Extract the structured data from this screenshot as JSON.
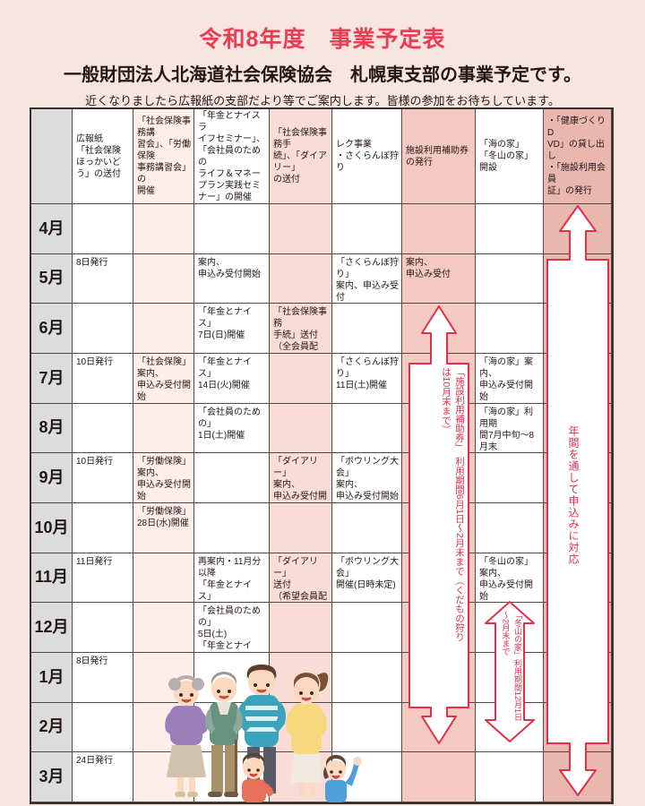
{
  "page": {
    "title": "令和8年度　事業予定表",
    "subtitle": "一般財団法人北海道社会保険協会　札幌東支部の事業予定です。",
    "note": "近くなりましたら広報紙の支部だより等でご案内します。皆様の参加をお待ちしています。"
  },
  "colors": {
    "page_bg": "#f8e5e1",
    "title_red": "#e73e53",
    "text_dark": "#231815",
    "month_gray": "#dcdcdc",
    "column_pink_light": "#fdeee9",
    "column_pink": "#f9dcd5",
    "column_pink_mid": "#f3c9c1",
    "column_pink_dark": "#eab7af",
    "grid_line": "#4c4948",
    "arrow_red": "#e0304a"
  },
  "table": {
    "column_headers": [
      "",
      "広報紙\n「社会保険\nほっかいど\nう」の送付",
      "「社会保険事務講\n習会」、「労働保険\n事務講習会」の\n開催",
      "「年金とナイスラ\nイフセミナー」、\n「会社員のための\nライフ＆マネー\nプラン実践セミ\nナー」の開催",
      "「社会保険事務手\n続」、「ダイアリー」\nの送付",
      "レク事業\n・さくらんぼ狩り",
      "施設利用補助券\nの発行",
      "「海の家」\n「冬山の家」開設",
      "・「健康づくりD\nVD」の貸し出し\n・「施設利用会員\n証」の発行"
    ],
    "rows": [
      {
        "month": "4月",
        "cells": [
          "",
          "",
          "",
          "",
          "",
          "",
          "",
          ""
        ]
      },
      {
        "month": "5月",
        "cells": [
          "8日発行",
          "",
          "案内、\n申込み受付開始",
          "",
          "「さくらんぼ狩り」\n案内、申込み受付",
          "案内、\n申込み受付",
          "",
          ""
        ]
      },
      {
        "month": "6月",
        "cells": [
          "",
          "",
          "「年金とナイス」\n7日(日)開催",
          "「社会保険事務\n手続」送付\n（全会員配付）",
          "",
          "",
          "",
          ""
        ]
      },
      {
        "month": "7月",
        "cells": [
          "10日発行",
          "「社会保険」案内、\n申込み受付開始",
          "「年金とナイス」\n14日(火)開催",
          "",
          "「さくらんぼ狩り」\n11日(土)開催",
          "",
          "「海の家」案内、\n申込み受付開始",
          ""
        ]
      },
      {
        "month": "8月",
        "cells": [
          "",
          "",
          "「会社員のための」\n1日(土)開催",
          "",
          "",
          "",
          "「海の家」利用期\n間7月中旬～8\n月末",
          ""
        ]
      },
      {
        "month": "9月",
        "cells": [
          "10日発行",
          "「労働保険」案内、\n申込み受付開始\n「社会保険」15日\n(火)開催",
          "",
          "「ダイアリー」\n案内、\n申込み受付開始",
          "「ボウリング大会」\n案内、\n申込み受付開始",
          "",
          "",
          ""
        ]
      },
      {
        "month": "10月",
        "cells": [
          "",
          "「労働保険」\n28日(水)開催",
          "",
          "",
          "",
          "",
          "",
          ""
        ]
      },
      {
        "month": "11月",
        "cells": [
          "11日発行",
          "",
          "再案内・11月分\n以降\n「年金とナイス」\n1日(日)開催",
          "「ダイアリー」\n送付\n（希望会員配付）",
          "「ボウリング大会」\n開催(日時未定)",
          "",
          "「冬山の家」案内、\n申込み受付開始",
          ""
        ]
      },
      {
        "month": "12月",
        "cells": [
          "",
          "",
          "「会社員のための」\n5日(土)\n「年金とナイス」\n12日(土)開催",
          "",
          "",
          "",
          "",
          ""
        ]
      },
      {
        "month": "1月",
        "cells": [
          "8日発行",
          "",
          "",
          "",
          "",
          "",
          "",
          ""
        ]
      },
      {
        "month": "2月",
        "cells": [
          "",
          "",
          "",
          "",
          "",
          "",
          "",
          ""
        ]
      },
      {
        "month": "3月",
        "cells": [
          "24日発行",
          "",
          "",
          "",
          "",
          "",
          "",
          ""
        ]
      }
    ]
  },
  "arrows": [
    {
      "name": "subsidy-period",
      "text_col1": "「施設利用補助券」　利用期間6月1日～2月末まで（くだもの狩り",
      "text_col2": "は10月末まで）"
    },
    {
      "name": "winter-house-period",
      "text_col1": "「冬山の家」利用期間12月1日",
      "text_col2": "～2月末まで"
    },
    {
      "name": "year-round",
      "text": "年間を通して申込みに対応"
    }
  ],
  "illustration": {
    "description": "family-of-six"
  }
}
